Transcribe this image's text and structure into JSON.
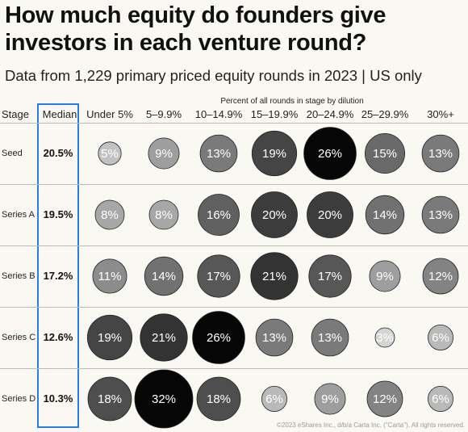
{
  "title": "How much equity do founders give investors in each venture round?",
  "subtitle": "Data from 1,229 primary priced equity rounds in 2023 | US only",
  "column_group_label": "Percent of all rounds in stage by dilution",
  "headers": {
    "stage": "Stage",
    "median": "Median"
  },
  "footer": "©2023 eShares Inc., d/b/a Carta Inc. (\"Carta\"). All rights reserved.",
  "colors": {
    "median_box": "#2c7be5",
    "background": "#faf8f3"
  },
  "chart_data": {
    "type": "heatmap",
    "title": "How much equity do founders give investors in each venture round?",
    "subtitle": "Data from 1,229 primary priced equity rounds in 2023 | US only",
    "xlabel": "Percent of all rounds in stage by dilution",
    "ylabel": "Stage",
    "categories": [
      "Under 5%",
      "5–9.9%",
      "10–14.9%",
      "15–19.9%",
      "20–24.9%",
      "25–29.9%",
      "30%+"
    ],
    "rows": [
      {
        "stage": "Seed",
        "median": "20.5%",
        "values": [
          5,
          9,
          13,
          19,
          26,
          15,
          13
        ]
      },
      {
        "stage": "Series A",
        "median": "19.5%",
        "values": [
          8,
          8,
          16,
          20,
          20,
          14,
          13
        ]
      },
      {
        "stage": "Series B",
        "median": "17.2%",
        "values": [
          11,
          14,
          17,
          21,
          17,
          9,
          12
        ]
      },
      {
        "stage": "Series C",
        "median": "12.6%",
        "values": [
          19,
          21,
          26,
          13,
          13,
          3,
          6
        ]
      },
      {
        "stage": "Series D",
        "median": "10.3%",
        "values": [
          18,
          32,
          18,
          6,
          9,
          12,
          6
        ]
      }
    ],
    "value_suffix": "%"
  }
}
